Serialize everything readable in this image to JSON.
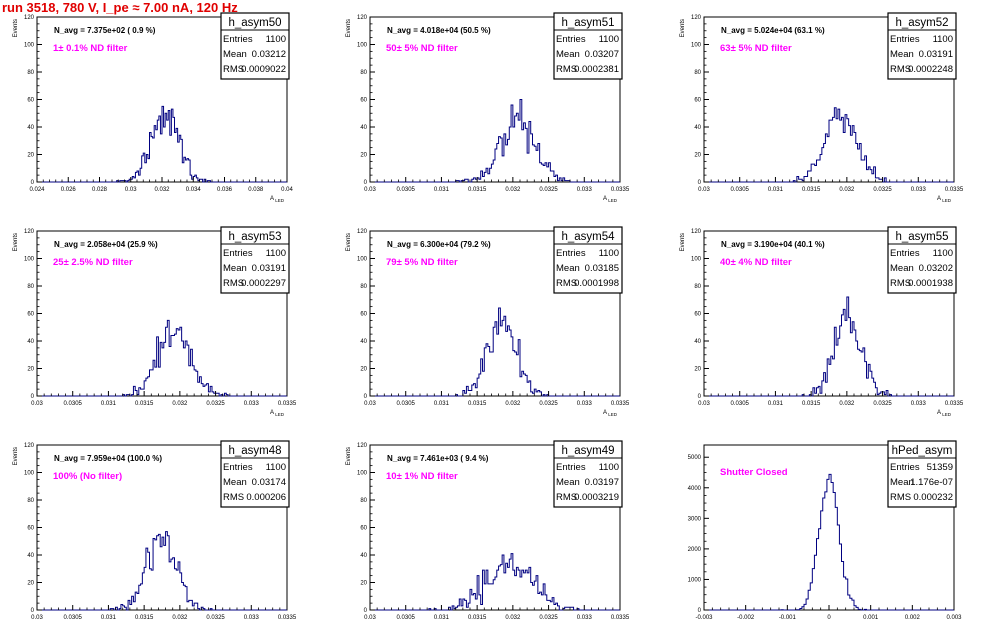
{
  "run_title": "run 3518,   780 V, I_pe ≈ 7.00 nA, 120 Hz",
  "colors": {
    "hist": "#000080",
    "label_magenta": "#ff00ff",
    "title_red": "#e00000"
  },
  "chart_data": [
    {
      "type": "histogram",
      "name": "h_asym50",
      "stats": {
        "entries": "1100",
        "mean": "0.03212",
        "rms": "0.0009022"
      },
      "n_avg": "N_avg = 7.375e+02 ( 0.9 %)",
      "filter_label": "1± 0.1% ND filter",
      "ylabel": "Events",
      "xlabel": "A_{LED}",
      "xlim": [
        0.024,
        0.04
      ],
      "ylim": [
        0,
        120
      ],
      "xticks": [
        0.024,
        0.026,
        0.028,
        0.03,
        0.032,
        0.034,
        0.036,
        0.038,
        0.04
      ],
      "xtick_labels": [
        "0.024",
        "0.026",
        "0.028",
        "0.03",
        "0.032",
        "0.034",
        "0.036",
        "0.038",
        "0.04"
      ],
      "yticks": [
        0,
        20,
        40,
        60,
        80,
        100,
        120
      ],
      "nbins": 160,
      "mu": 0.03212,
      "sigma": 0.0009022,
      "seed": 50
    },
    {
      "type": "histogram",
      "name": "h_asym51",
      "stats": {
        "entries": "1100",
        "mean": "0.03207",
        "rms": "0.0002381"
      },
      "n_avg": "N_avg = 4.018e+04 (50.5 %)",
      "filter_label": "50± 5% ND filter",
      "ylabel": "Events",
      "xlabel": "A_{LED}",
      "xlim": [
        0.03,
        0.0335
      ],
      "ylim": [
        0,
        120
      ],
      "xticks": [
        0.03,
        0.0305,
        0.031,
        0.0315,
        0.032,
        0.0325,
        0.033,
        0.0335
      ],
      "xtick_labels": [
        "0.03",
        "0.0305",
        "0.031",
        "0.0315",
        "0.032",
        "0.0325",
        "0.033",
        "0.0335"
      ],
      "yticks": [
        0,
        20,
        40,
        60,
        80,
        100,
        120
      ],
      "nbins": 140,
      "mu": 0.03207,
      "sigma": 0.0002381,
      "seed": 51
    },
    {
      "type": "histogram",
      "name": "h_asym52",
      "stats": {
        "entries": "1100",
        "mean": "0.03191",
        "rms": "0.0002248"
      },
      "n_avg": "N_avg = 5.024e+04 (63.1 %)",
      "filter_label": "63± 5% ND filter",
      "ylabel": "Events",
      "xlabel": "A_{LED}",
      "xlim": [
        0.03,
        0.0335
      ],
      "ylim": [
        0,
        120
      ],
      "xticks": [
        0.03,
        0.0305,
        0.031,
        0.0315,
        0.032,
        0.0325,
        0.033,
        0.0335
      ],
      "xtick_labels": [
        "0.03",
        "0.0305",
        "0.031",
        "0.0315",
        "0.032",
        "0.0325",
        "0.033",
        "0.0335"
      ],
      "yticks": [
        0,
        20,
        40,
        60,
        80,
        100,
        120
      ],
      "nbins": 140,
      "mu": 0.03191,
      "sigma": 0.0002248,
      "seed": 52
    },
    {
      "type": "histogram",
      "name": "h_asym53",
      "stats": {
        "entries": "1100",
        "mean": "0.03191",
        "rms": "0.0002297"
      },
      "n_avg": "N_avg = 2.058e+04 (25.9 %)",
      "filter_label": "25± 2.5% ND filter",
      "ylabel": "Events",
      "xlabel": "A_{LED}",
      "xlim": [
        0.03,
        0.0335
      ],
      "ylim": [
        0,
        120
      ],
      "xticks": [
        0.03,
        0.0305,
        0.031,
        0.0315,
        0.032,
        0.0325,
        0.033,
        0.0335
      ],
      "xtick_labels": [
        "0.03",
        "0.0305",
        "0.031",
        "0.0315",
        "0.032",
        "0.0325",
        "0.033",
        "0.0335"
      ],
      "yticks": [
        0,
        20,
        40,
        60,
        80,
        100,
        120
      ],
      "nbins": 140,
      "mu": 0.03191,
      "sigma": 0.0002297,
      "seed": 53
    },
    {
      "type": "histogram",
      "name": "h_asym54",
      "stats": {
        "entries": "1100",
        "mean": "0.03185",
        "rms": "0.0001998"
      },
      "n_avg": "N_avg = 6.300e+04 (79.2 %)",
      "filter_label": "79± 5% ND filter",
      "ylabel": "Events",
      "xlabel": "A_{LED}",
      "xlim": [
        0.03,
        0.0335
      ],
      "ylim": [
        0,
        120
      ],
      "xticks": [
        0.03,
        0.0305,
        0.031,
        0.0315,
        0.032,
        0.0325,
        0.033,
        0.0335
      ],
      "xtick_labels": [
        "0.03",
        "0.0305",
        "0.031",
        "0.0315",
        "0.032",
        "0.0325",
        "0.033",
        "0.0335"
      ],
      "yticks": [
        0,
        20,
        40,
        60,
        80,
        100,
        120
      ],
      "nbins": 140,
      "mu": 0.03185,
      "sigma": 0.0001998,
      "seed": 54
    },
    {
      "type": "histogram",
      "name": "h_asym55",
      "stats": {
        "entries": "1100",
        "mean": "0.03202",
        "rms": "0.0001938"
      },
      "n_avg": "N_avg = 3.190e+04 (40.1 %)",
      "filter_label": "40± 4% ND filter",
      "ylabel": "Events",
      "xlabel": "A_{LED}",
      "xlim": [
        0.03,
        0.0335
      ],
      "ylim": [
        0,
        120
      ],
      "xticks": [
        0.03,
        0.0305,
        0.031,
        0.0315,
        0.032,
        0.0325,
        0.033,
        0.0335
      ],
      "xtick_labels": [
        "0.03",
        "0.0305",
        "0.031",
        "0.0315",
        "0.032",
        "0.0325",
        "0.033",
        "0.0335"
      ],
      "yticks": [
        0,
        20,
        40,
        60,
        80,
        100,
        120
      ],
      "nbins": 140,
      "mu": 0.03202,
      "sigma": 0.0001938,
      "seed": 55
    },
    {
      "type": "histogram",
      "name": "h_asym48",
      "stats": {
        "entries": "1100",
        "mean": "0.03174",
        "rms": "0.000206"
      },
      "n_avg": "N_avg = 7.959e+04 (100.0 %)",
      "filter_label": "100% (No filter)",
      "ylabel": "Events",
      "xlabel": "A_{LED}",
      "xlim": [
        0.03,
        0.0335
      ],
      "ylim": [
        0,
        120
      ],
      "xticks": [
        0.03,
        0.0305,
        0.031,
        0.0315,
        0.032,
        0.0325,
        0.033,
        0.0335
      ],
      "xtick_labels": [
        "0.03",
        "0.0305",
        "0.031",
        "0.0315",
        "0.032",
        "0.0325",
        "0.033",
        "0.0335"
      ],
      "yticks": [
        0,
        20,
        40,
        60,
        80,
        100,
        120
      ],
      "nbins": 140,
      "mu": 0.03174,
      "sigma": 0.000206,
      "seed": 48
    },
    {
      "type": "histogram",
      "name": "h_asym49",
      "stats": {
        "entries": "1100",
        "mean": "0.03197",
        "rms": "0.0003219"
      },
      "n_avg": "N_avg = 7.461e+03 ( 9.4 %)",
      "filter_label": "10± 1% ND filter",
      "ylabel": "Events",
      "xlabel": "A_{LED}",
      "xlim": [
        0.03,
        0.0335
      ],
      "ylim": [
        0,
        120
      ],
      "xticks": [
        0.03,
        0.0305,
        0.031,
        0.0315,
        0.032,
        0.0325,
        0.033,
        0.0335
      ],
      "xtick_labels": [
        "0.03",
        "0.0305",
        "0.031",
        "0.0315",
        "0.032",
        "0.0325",
        "0.033",
        "0.0335"
      ],
      "yticks": [
        0,
        20,
        40,
        60,
        80,
        100,
        120
      ],
      "nbins": 140,
      "mu": 0.03197,
      "sigma": 0.0003219,
      "seed": 49
    },
    {
      "type": "histogram",
      "name": "hPed_asym",
      "stats": {
        "entries": "51359",
        "mean": "1.176e-07",
        "rms": "0.000232"
      },
      "n_avg": "",
      "filter_label": "Shutter Closed",
      "ylabel": "",
      "xlabel": "A_{LED}",
      "xlim": [
        -0.003,
        0.003
      ],
      "ylim": [
        0,
        5400
      ],
      "xticks": [
        -0.003,
        -0.002,
        -0.001,
        0,
        0.001,
        0.002,
        0.003
      ],
      "xtick_labels": [
        "-0.003",
        "-0.002",
        "-0.001",
        "0",
        "0.001",
        "0.002",
        "0.003"
      ],
      "yticks": [
        0,
        1000,
        2000,
        3000,
        4000,
        5000
      ],
      "nbins": 120,
      "mu": 0.0,
      "sigma": 0.000232,
      "seed": 99
    }
  ]
}
